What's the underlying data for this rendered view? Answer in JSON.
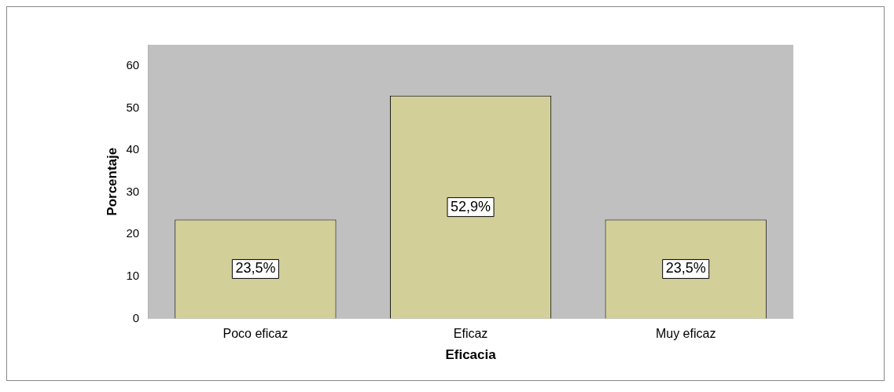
{
  "chart_data": {
    "type": "bar",
    "xlabel": "Eficacia",
    "ylabel": "Porcentaje",
    "categories": [
      "Poco eficaz",
      "Eficaz",
      "Muy eficaz"
    ],
    "values": [
      23.5,
      52.9,
      23.5
    ],
    "color": "#d3cf98",
    "value_labels": [
      "23,5%",
      "52,9%",
      "23,5%"
    ],
    "ylim": [
      0,
      65
    ],
    "yticks": [
      0,
      10,
      20,
      30,
      40,
      50,
      60
    ],
    "grid": false,
    "legend": false
  }
}
